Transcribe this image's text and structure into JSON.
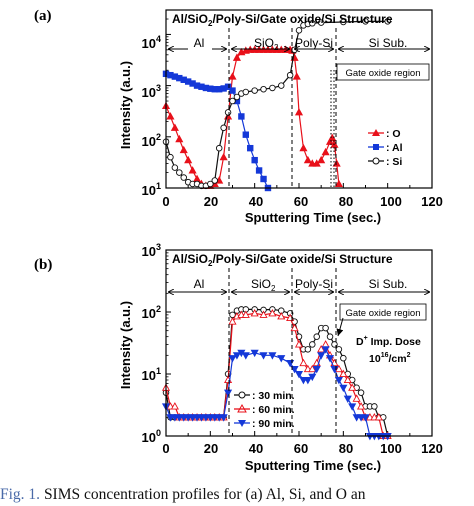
{
  "panels": [
    {
      "label": "(a)",
      "title": "Al/SiO2/Poly-Si/Gate oxide/Si Structure",
      "regions": [
        "Al",
        "SiO2",
        "Poly-Si",
        "Si Sub."
      ],
      "gate_oxide_label": "Gate oxide region",
      "legend": [
        ": O",
        ": Al",
        ": Si"
      ],
      "xlabel": "Sputtering Time (sec.)",
      "ylabel": "Intensity (a.u.)",
      "xticks": [
        "0",
        "20",
        "40",
        "60",
        "80",
        "100",
        "120"
      ],
      "yticks": [
        "10^1",
        "10^2",
        "10^3",
        "10^4"
      ]
    },
    {
      "label": "(b)",
      "title": "Al/SiO2/Poly-Si/Gate oxide/Si Structure",
      "regions": [
        "Al",
        "SiO2",
        "Poly-Si",
        "Si Sub."
      ],
      "gate_oxide_label": "Gate oxide region",
      "dose_line1": "D+ Imp. Dose",
      "dose_line2": "10^16/cm^2",
      "legend": [
        ": 30 min.",
        ": 60 min.",
        ": 90 min."
      ],
      "xlabel": "Sputtering Time (sec.)",
      "ylabel": "Intensity (a.u.)",
      "xticks": [
        "0",
        "20",
        "40",
        "60",
        "80",
        "100",
        "120"
      ],
      "yticks": [
        "10^0",
        "10^1",
        "10^2",
        "10^3"
      ]
    }
  ],
  "caption": {
    "fig_label": "Fig. 1.",
    "text": " SIMS concentration profiles for (a) Al, Si, and O an"
  },
  "chart_data": [
    {
      "type": "line",
      "x_scale": "linear",
      "y_scale": "log",
      "xlim": [
        0,
        120
      ],
      "ylim": [
        10,
        30000
      ],
      "colors": {
        "O": "#e8101a",
        "Al": "#1438d8",
        "Si": "#111111"
      },
      "series": [
        {
          "name": "O",
          "x": [
            0,
            2,
            4,
            6,
            8,
            10,
            12,
            14,
            16,
            18,
            20,
            22,
            24,
            26,
            28,
            30,
            32,
            34,
            36,
            38,
            40,
            42,
            44,
            46,
            48,
            50,
            52,
            54,
            56,
            57,
            58,
            59,
            60,
            62,
            64,
            66,
            68,
            70,
            72,
            74,
            75,
            76,
            77,
            78
          ],
          "y": [
            400,
            250,
            150,
            90,
            55,
            35,
            22,
            15,
            12,
            11,
            11,
            12,
            14,
            40,
            250,
            1500,
            3500,
            4500,
            4800,
            5000,
            5000,
            5000,
            5000,
            5000,
            5000,
            5000,
            5000,
            5000,
            5000,
            4800,
            3500,
            1500,
            300,
            60,
            35,
            30,
            30,
            35,
            50,
            80,
            95,
            70,
            30,
            12
          ]
        },
        {
          "name": "Al",
          "x": [
            0,
            2,
            4,
            6,
            8,
            10,
            12,
            14,
            16,
            18,
            20,
            22,
            24,
            26,
            28,
            30,
            32,
            34,
            36,
            38,
            40,
            42,
            44,
            46
          ],
          "y": [
            1700,
            1600,
            1500,
            1400,
            1300,
            1200,
            1100,
            1000,
            950,
            900,
            870,
            850,
            850,
            880,
            950,
            800,
            500,
            250,
            110,
            60,
            35,
            22,
            15,
            10
          ]
        },
        {
          "name": "Si",
          "x": [
            0,
            2,
            4,
            6,
            8,
            10,
            12,
            14,
            16,
            18,
            20,
            22,
            24,
            26,
            28,
            30,
            32,
            34,
            36,
            40,
            44,
            48,
            52,
            56,
            58,
            60,
            62,
            64,
            66,
            70,
            80,
            90,
            100
          ],
          "y": [
            80,
            40,
            25,
            20,
            16,
            13,
            12,
            12,
            11,
            11,
            12,
            14,
            60,
            150,
            300,
            500,
            600,
            700,
            750,
            800,
            850,
            900,
            1000,
            1600,
            5000,
            12000,
            15000,
            16000,
            16500,
            17000,
            17500,
            18000,
            18000
          ]
        }
      ],
      "annotations": [
        "Gate oxide region"
      ],
      "gate_oxide_x": 76
    },
    {
      "type": "line",
      "x_scale": "linear",
      "y_scale": "log",
      "xlim": [
        0,
        120
      ],
      "ylim": [
        1,
        1000
      ],
      "colors": {
        "30 min.": "#111111",
        "60 min.": "#e8101a",
        "90 min.": "#1438d8"
      },
      "series": [
        {
          "name": "30 min.",
          "x": [
            0,
            2,
            4,
            6,
            8,
            10,
            12,
            14,
            16,
            18,
            20,
            22,
            24,
            26,
            28,
            30,
            32,
            34,
            36,
            40,
            44,
            48,
            52,
            56,
            58,
            60,
            62,
            64,
            66,
            68,
            70,
            72,
            74,
            76,
            78,
            80,
            82,
            84,
            86,
            88,
            90,
            92,
            94,
            96,
            98,
            100
          ],
          "y": [
            5,
            2,
            2,
            2,
            2,
            2,
            2,
            2,
            2,
            2,
            2,
            2,
            2,
            2,
            10,
            90,
            105,
            110,
            110,
            110,
            108,
            110,
            105,
            95,
            70,
            40,
            25,
            25,
            30,
            40,
            55,
            55,
            40,
            30,
            25,
            18,
            10,
            8,
            6,
            5,
            3,
            3,
            3,
            2,
            2,
            1
          ]
        },
        {
          "name": "60 min.",
          "x": [
            0,
            2,
            4,
            6,
            8,
            10,
            12,
            14,
            16,
            18,
            20,
            22,
            24,
            26,
            28,
            30,
            32,
            34,
            36,
            40,
            44,
            48,
            52,
            56,
            58,
            60,
            62,
            64,
            66,
            68,
            70,
            72,
            74,
            76,
            78,
            80,
            82,
            84,
            86,
            88,
            90,
            92,
            94,
            96,
            98,
            100
          ],
          "y": [
            6,
            3,
            3,
            2,
            2,
            2,
            2,
            2,
            2,
            2,
            2,
            2,
            2,
            2,
            8,
            70,
            85,
            90,
            90,
            95,
            90,
            95,
            85,
            80,
            55,
            30,
            15,
            12,
            12,
            15,
            25,
            30,
            20,
            15,
            12,
            10,
            8,
            6,
            4,
            3,
            2,
            2,
            2,
            2,
            1,
            1
          ]
        },
        {
          "name": "90 min.",
          "x": [
            0,
            2,
            4,
            6,
            8,
            10,
            12,
            14,
            16,
            18,
            20,
            22,
            24,
            26,
            28,
            30,
            32,
            34,
            36,
            40,
            44,
            48,
            52,
            56,
            58,
            60,
            62,
            64,
            66,
            68,
            70,
            72,
            74,
            76,
            78,
            80,
            82,
            84,
            86,
            88,
            90,
            92,
            94,
            96,
            98,
            100
          ],
          "y": [
            3,
            2,
            2,
            2,
            2,
            2,
            2,
            2,
            2,
            2,
            2,
            2,
            2,
            2,
            5,
            18,
            20,
            22,
            20,
            22,
            20,
            20,
            18,
            15,
            12,
            10,
            8,
            8,
            9,
            12,
            20,
            25,
            18,
            12,
            8,
            6,
            4,
            3,
            2,
            2,
            2,
            1,
            1,
            1,
            1,
            1
          ]
        }
      ],
      "annotations": [
        "Gate oxide region",
        "D+ Imp. Dose 10^16/cm^2"
      ],
      "gate_oxide_x": 76
    }
  ]
}
